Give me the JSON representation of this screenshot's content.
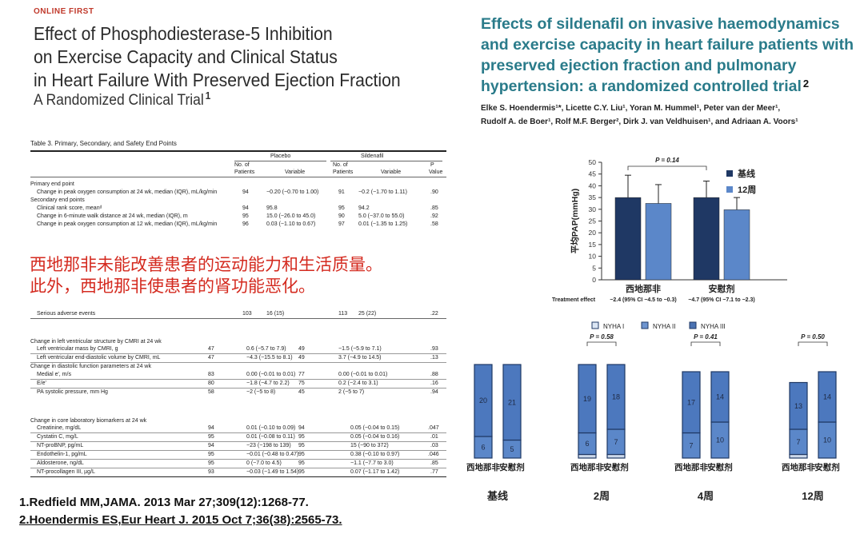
{
  "left_paper": {
    "label": "ONLINE FIRST",
    "title_lines": [
      "Effect of Phosphodiesterase-5 Inhibition",
      "on Exercise Capacity and Clinical Status",
      "in Heart Failure With Preserved Ejection Fraction"
    ],
    "subtitle": "A Randomized Clinical Trial",
    "ref_number": "1"
  },
  "right_paper": {
    "title_lines": [
      "Effects of sildenafil on invasive haemodynamics",
      "and exercise capacity in heart failure patients with",
      "preserved ejection fraction and pulmonary",
      "hypertension: a randomized controlled trial"
    ],
    "ref_number": "2",
    "author_lines": [
      "Elke S. Hoendermis¹*, Licette C.Y. Liu¹, Yoran M. Hummel¹, Peter van der Meer¹,",
      "Rudolf A. de Boer¹, Rolf M.F. Berger², Dirk J. van Veldhuisen¹, and Adriaan A. Voors¹"
    ]
  },
  "table": {
    "caption": "Table 3. Primary, Secondary, and Safety End Points",
    "group_placebo": "Placebo",
    "group_sildenafil": "Sildenafil",
    "col_n_line1": "No. of",
    "col_n_line2": "Patients",
    "col_variable": "Variable",
    "col_p_line1": "P",
    "col_p_line2": "Value",
    "primary_header": "Primary end point",
    "primary_rows": [
      {
        "label": "Change in peak oxygen consumption at 24 wk, median (IQR), mL/kg/min",
        "n1": "94",
        "v1": "−0.20 (−0.70 to 1.00)",
        "n2": "91",
        "v2": "−0.2 (−1.70 to 1.11)",
        "p": ".90"
      }
    ],
    "secondary_header": "Secondary end points",
    "secondary_rows": [
      {
        "label": "Clinical rank score, meanᵈ",
        "n1": "94",
        "v1": "95.8",
        "n2": "95",
        "v2": "94.2",
        "p": ".85"
      },
      {
        "label": "Change in 6-minute walk distance at 24 wk, median (IQR), m",
        "n1": "95",
        "v1": "15.0 (−26.0 to 45.0)",
        "n2": "90",
        "v2": "5.0 (−37.0 to 55.0)",
        "p": ".92"
      },
      {
        "label": "Change in peak oxygen consumption at 12 wk, median (IQR), mL/kg/min",
        "n1": "96",
        "v1": "0.03 (−1.10 to 0.67)",
        "n2": "97",
        "v2": "0.01 (−1.35 to 1.25)",
        "p": ".58"
      }
    ],
    "safety_row": {
      "label": "Serious adverse events",
      "n1": "103",
      "v1": "16 (15)",
      "n2": "113",
      "v2": "25 (22)",
      "p": ".22"
    },
    "cmri_header": "Change in left ventricular structure by CMRI at 24 wk",
    "cmri_rows": [
      {
        "label": "Left ventricular mass by CMRI, g",
        "n1": "47",
        "v1": "0.6 (−5.7 to 7.9)",
        "n2": "49",
        "v2": "−1.5 (−5.9 to 7.1)",
        "p": ".93"
      },
      {
        "label": "Left ventricular end-diastolic volume by CMRI, mL",
        "n1": "47",
        "v1": "−4.3 (−15.5 to 8.1)",
        "n2": "49",
        "v2": "3.7 (−4.9 to 14.5)",
        "p": ".13"
      }
    ],
    "diastolic_header": "Change in diastolic function parameters at 24 wk",
    "diastolic_rows": [
      {
        "label": "Medial e', m/s",
        "n1": "83",
        "v1": "0.00 (−0.01 to 0.01)",
        "n2": "77",
        "v2": "0.00 (−0.01 to 0.01)",
        "p": ".88"
      },
      {
        "label": "E/e'",
        "n1": "80",
        "v1": "−1.8 (−4.7 to 2.2)",
        "n2": "75",
        "v2": "0.2 (−2.4 to 3.1)",
        "p": ".16"
      },
      {
        "label": "PA systolic pressure, mm Hg",
        "n1": "58",
        "v1": "−2 (−5 to 8)",
        "n2": "45",
        "v2": "2 (−5 to 7)",
        "p": ".94"
      }
    ],
    "biomarker_header": "Change in core laboratory biomarkers at 24 wk",
    "biomarker_rows": [
      {
        "label": "Creatinine, mg/dL",
        "n1": "94",
        "v1": "0.01 (−0.10 to 0.09)",
        "n2": "94",
        "v2": "0.05 (−0.04 to 0.15)",
        "p": ".047"
      },
      {
        "label": "Cystatin C, mg/L",
        "n1": "95",
        "v1": "0.01 (−0.08 to 0.11)",
        "n2": "95",
        "v2": "0.05 (−0.04 to 0.16)",
        "p": ".01"
      },
      {
        "label": "NT-proBNP, pg/mL",
        "n1": "94",
        "v1": "−23 (−198 to 139)",
        "n2": "95",
        "v2": "15 (−90 to 372)",
        "p": ".03"
      },
      {
        "label": "Endothelin-1, pg/mL",
        "n1": "95",
        "v1": "−0.01 (−0.48 to 0.47)",
        "n2": "95",
        "v2": "0.38 (−0.10 to 0.97)",
        "p": ".046"
      },
      {
        "label": "Aldosterone, ng/dL",
        "n1": "95",
        "v1": "0 (−7.0 to 4.5)",
        "n2": "95",
        "v2": "−1.1 (−7.7 to 3.0)",
        "p": ".85"
      },
      {
        "label": "NT-procollagen III, µg/L",
        "n1": "93",
        "v1": "−0.03 (−1.49 to 1.54)",
        "n2": "95",
        "v2": "0.07 (−1.17 to 1.42)",
        "p": ".77"
      }
    ]
  },
  "overlay_note": {
    "line1": "西地那非未能改善患者的运动能力和生活质量。",
    "line2": "此外，西地那非使患者的肾功能恶化。"
  },
  "references": [
    {
      "num": "1.",
      "text": "Redfield MM,JAMA. 2013 Mar 27;309(12):1268-77."
    },
    {
      "num": "2.",
      "text": "Hoendermis ES,Eur Heart J. 2015 Oct 7;36(38):2565-73."
    }
  ],
  "colors": {
    "dark_navy": "#1f3864",
    "medium_blue": "#5b87c9",
    "light_blue": "#c9d9ef",
    "teal_title": "#2a7b8a",
    "red_note": "#d42a1f"
  },
  "chart_data": [
    {
      "type": "bar",
      "ylabel": "平均PAP(mmHg)",
      "ylim": [
        0,
        50
      ],
      "yticks": [
        0,
        5,
        10,
        15,
        20,
        25,
        30,
        35,
        40,
        45,
        50
      ],
      "categories": [
        "西地那非",
        "安慰剂"
      ],
      "series": [
        {
          "name": "基线",
          "values": [
            35,
            35
          ],
          "err_high": [
            44.5,
            42
          ]
        },
        {
          "name": "12周",
          "values": [
            32.5,
            29.8
          ],
          "err_high": [
            40.5,
            35
          ]
        }
      ],
      "annotation": "P = 0.14",
      "footer_label": "Treatment effect",
      "footer_values": [
        "−2.4 (95% CI −4.5 to −0.3)",
        "−4.7 (95% CI −7.1 to −2.3)"
      ],
      "legend_position": "top-right"
    },
    {
      "type": "stacked-bar",
      "legend": [
        "NYHA I",
        "NYHA II",
        "NYHA III"
      ],
      "timepoints": [
        "基线",
        "2周",
        "4周",
        "12周"
      ],
      "bar_labels": [
        "西地那非",
        "安慰剂"
      ],
      "p_values": [
        "P = 0.58",
        "P = 0.41",
        "P = 0.50"
      ],
      "groups": [
        {
          "timepoint": "基线",
          "bars": [
            {
              "I": 0,
              "II": 6,
              "III": 20
            },
            {
              "I": 0,
              "II": 5,
              "III": 21
            }
          ]
        },
        {
          "timepoint": "2周",
          "bars": [
            {
              "I": 1,
              "II": 6,
              "III": 19
            },
            {
              "I": 1,
              "II": 7,
              "III": 18
            }
          ]
        },
        {
          "timepoint": "4周",
          "bars": [
            {
              "I": 0,
              "II": 7,
              "III": 17
            },
            {
              "I": 0,
              "II": 10,
              "III": 14
            }
          ]
        },
        {
          "timepoint": "12周",
          "bars": [
            {
              "I": 1,
              "II": 7,
              "III": 13
            },
            {
              "I": 0,
              "II": 10,
              "III": 14
            }
          ]
        }
      ]
    }
  ]
}
